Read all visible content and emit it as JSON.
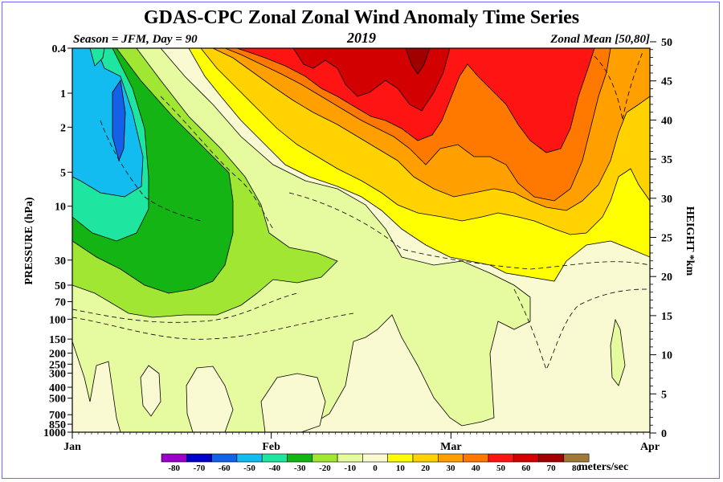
{
  "chart_data": {
    "type": "heatmap",
    "title": "GDAS-CPC Zonal Zonal Wind Anomaly Time Series",
    "season_label": "Season = JFM, Day =  90",
    "year_label": "2019",
    "region_label": "Zonal Mean [50,80]",
    "ylabel": "PRESSURE (hPa)",
    "y2label": "HEIGHT *km",
    "units": "meters/sec",
    "x_ticks": [
      "Jan",
      "Feb",
      "Mar",
      "Apr"
    ],
    "pressure_ticks": [
      "0.4",
      "1",
      "2",
      "5",
      "10",
      "30",
      "50",
      "70",
      "100",
      "150",
      "200",
      "250",
      "300",
      "400",
      "500",
      "700",
      "850",
      "1000"
    ],
    "height_ticks": [
      "50",
      "45",
      "40",
      "35",
      "30",
      "25",
      "20",
      "15",
      "10",
      "5",
      "0"
    ],
    "legend_levels": [
      "-80",
      "-70",
      "-60",
      "-50",
      "-40",
      "-30",
      "-20",
      "-10",
      "0",
      "10",
      "20",
      "30",
      "40",
      "50",
      "60",
      "70",
      "80"
    ],
    "legend_colors": [
      "#9a00c8",
      "#0000c8",
      "#1460e6",
      "#12bcf0",
      "#1ee6a0",
      "#14b414",
      "#a0e632",
      "#e6faa0",
      "#fafad2",
      "#ffff00",
      "#ffd200",
      "#ffa000",
      "#ff7800",
      "#ff1414",
      "#d20000",
      "#a00000",
      "#a07838"
    ]
  }
}
